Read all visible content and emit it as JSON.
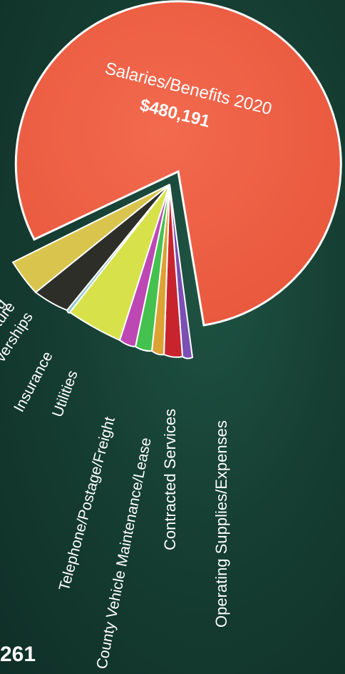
{
  "chart_data": {
    "type": "pie",
    "slices": [
      {
        "label": "Salaries/Benefits 2020",
        "value_label": "$480,191",
        "color": "#ea5a3e",
        "explode": true
      },
      {
        "label": "Operating Supplies/Expenses",
        "color": "#7b4fb3"
      },
      {
        "label": "Contracted Services",
        "color": "#c8242d"
      },
      {
        "label": "County Vehicle Maintenance/Lease",
        "color": "#dca233"
      },
      {
        "label": "Telephone/Postage/Freight",
        "color": "#44c14e"
      },
      {
        "label": "Utilities",
        "color": "#bd48b4"
      },
      {
        "label": "Insurance",
        "color": "#d7e24a"
      },
      {
        "label": "Memberships",
        "color": "#8ac7cf"
      },
      {
        "label": "Furniture",
        "color": "#2e2e28"
      },
      {
        "label": "Training",
        "color": "#d9c54d"
      }
    ],
    "visible_label_text": {
      "memberships": "verships",
      "furniture": "ture",
      "training": "g"
    }
  },
  "page": {
    "number_fragment": "261"
  }
}
